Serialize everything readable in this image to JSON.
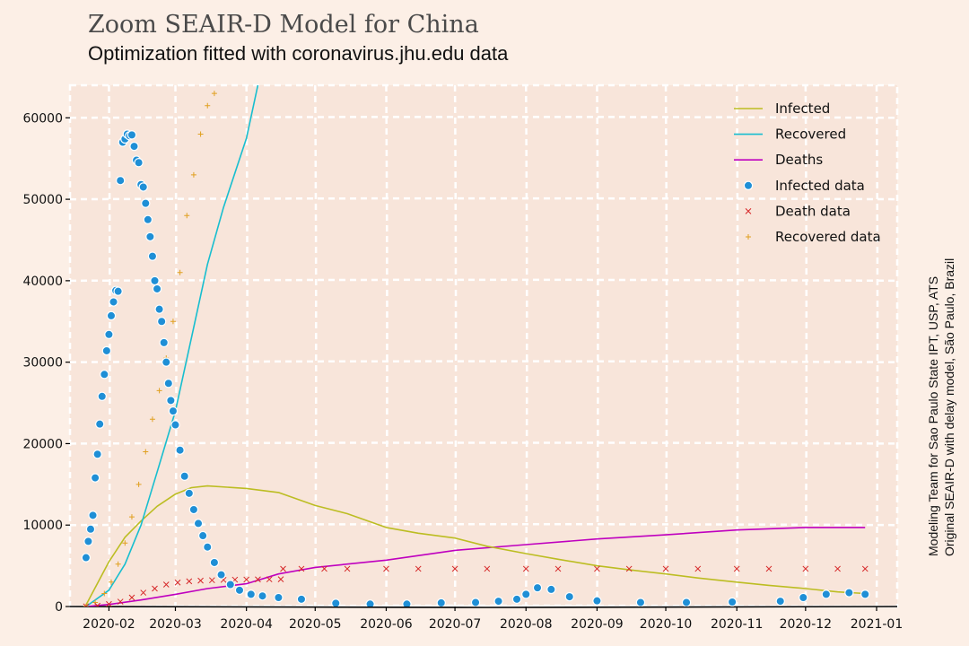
{
  "colors": {
    "figure_bg": "#fcefe6",
    "plot_bg": "#f8e5da",
    "grid": "#ffffff",
    "infected": "#bcbd22",
    "recovered": "#17becf",
    "deaths": "#bf00bf",
    "infected_data": "#1f8fd6",
    "death_data": "#d62728",
    "recovered_data": "#e0a020"
  },
  "chart_data": {
    "type": "line",
    "title": "Zoom SEAIR-D Model for China",
    "subtitle": "Optimization fitted with coronavirus.jhu.edu data",
    "credit_lines": [
      "Modeling Team for Sao Paulo State IPT, USP, ATS",
      "Original SEAIR-D with delay model, São Paulo, Brazil"
    ],
    "xlabel": "",
    "ylabel": "",
    "x_domain": [
      "2020-01-15",
      "2021-01-10"
    ],
    "ylim": [
      0,
      64000
    ],
    "grid": true,
    "legend_position": "top-right",
    "x_ticks": [
      "2020-02",
      "2020-03",
      "2020-04",
      "2020-05",
      "2020-06",
      "2020-07",
      "2020-08",
      "2020-09",
      "2020-10",
      "2020-11",
      "2020-12",
      "2021-01"
    ],
    "x_tick_dates": [
      "2020-02-01",
      "2020-03-01",
      "2020-04-01",
      "2020-05-01",
      "2020-06-01",
      "2020-07-01",
      "2020-08-01",
      "2020-09-01",
      "2020-10-01",
      "2020-11-01",
      "2020-12-01",
      "2021-01-01"
    ],
    "y_ticks": [
      0,
      10000,
      20000,
      30000,
      40000,
      50000,
      60000
    ],
    "y_tick_labels": [
      "0",
      "10000",
      "20000",
      "30000",
      "40000",
      "50000",
      "60000"
    ],
    "series": [
      {
        "name": "Infected",
        "kind": "line",
        "x": [
          "2020-01-22",
          "2020-02-01",
          "2020-02-08",
          "2020-02-15",
          "2020-02-22",
          "2020-03-01",
          "2020-03-08",
          "2020-03-15",
          "2020-04-01",
          "2020-04-15",
          "2020-05-01",
          "2020-05-15",
          "2020-06-01",
          "2020-06-15",
          "2020-07-01",
          "2020-07-15",
          "2020-08-01",
          "2020-08-15",
          "2020-09-01",
          "2020-09-15",
          "2020-10-01",
          "2020-10-15",
          "2020-11-01",
          "2020-11-15",
          "2020-12-01",
          "2020-12-15",
          "2020-12-27"
        ],
        "y": [
          200,
          5500,
          8500,
          10500,
          12300,
          13800,
          14600,
          14800,
          14500,
          14000,
          12400,
          11400,
          9700,
          9000,
          8400,
          7400,
          6500,
          5800,
          5000,
          4500,
          4000,
          3500,
          3000,
          2600,
          2200,
          1800,
          1600
        ]
      },
      {
        "name": "Recovered",
        "kind": "line",
        "x": [
          "2020-01-22",
          "2020-02-01",
          "2020-02-08",
          "2020-02-15",
          "2020-02-22",
          "2020-03-01",
          "2020-03-08",
          "2020-03-15",
          "2020-03-22",
          "2020-04-01",
          "2020-04-06"
        ],
        "y": [
          0,
          2000,
          5200,
          10000,
          16500,
          24000,
          33000,
          42000,
          49000,
          57500,
          64000
        ]
      },
      {
        "name": "Deaths",
        "kind": "line",
        "x": [
          "2020-01-22",
          "2020-02-01",
          "2020-02-15",
          "2020-03-01",
          "2020-03-15",
          "2020-04-01",
          "2020-04-15",
          "2020-05-01",
          "2020-06-01",
          "2020-07-01",
          "2020-08-01",
          "2020-09-01",
          "2020-10-01",
          "2020-11-01",
          "2020-12-01",
          "2020-12-27"
        ],
        "y": [
          0,
          250,
          800,
          1500,
          2200,
          2800,
          4000,
          4800,
          5700,
          6900,
          7600,
          8300,
          8800,
          9400,
          9700,
          9700
        ]
      },
      {
        "name": "Infected data",
        "kind": "scatter",
        "marker": "circle",
        "x": [
          "2020-01-22",
          "2020-01-23",
          "2020-01-24",
          "2020-01-25",
          "2020-01-26",
          "2020-01-27",
          "2020-01-28",
          "2020-01-29",
          "2020-01-30",
          "2020-01-31",
          "2020-02-01",
          "2020-02-02",
          "2020-02-03",
          "2020-02-04",
          "2020-02-05",
          "2020-02-06",
          "2020-02-07",
          "2020-02-08",
          "2020-02-09",
          "2020-02-10",
          "2020-02-11",
          "2020-02-12",
          "2020-02-13",
          "2020-02-14",
          "2020-02-15",
          "2020-02-16",
          "2020-02-17",
          "2020-02-18",
          "2020-02-19",
          "2020-02-20",
          "2020-02-21",
          "2020-02-22",
          "2020-02-23",
          "2020-02-24",
          "2020-02-25",
          "2020-02-26",
          "2020-02-27",
          "2020-02-28",
          "2020-02-29",
          "2020-03-01",
          "2020-03-03",
          "2020-03-05",
          "2020-03-07",
          "2020-03-09",
          "2020-03-11",
          "2020-03-13",
          "2020-03-15",
          "2020-03-18",
          "2020-03-21",
          "2020-03-25",
          "2020-03-29",
          "2020-04-03",
          "2020-04-08",
          "2020-04-15",
          "2020-04-25",
          "2020-05-10",
          "2020-05-25",
          "2020-06-10",
          "2020-06-25",
          "2020-07-10",
          "2020-07-20",
          "2020-07-28",
          "2020-08-01",
          "2020-08-06",
          "2020-08-12",
          "2020-08-20",
          "2020-09-01",
          "2020-09-20",
          "2020-10-10",
          "2020-10-30",
          "2020-11-20",
          "2020-11-30",
          "2020-12-10",
          "2020-12-20",
          "2020-12-27"
        ],
        "y": [
          6000,
          8000,
          9500,
          11200,
          15800,
          18700,
          22400,
          25800,
          28500,
          31400,
          33400,
          35700,
          37400,
          38800,
          38700,
          52300,
          57000,
          57400,
          58000,
          57800,
          57900,
          56500,
          54800,
          54500,
          51800,
          51500,
          49500,
          47500,
          45400,
          43000,
          40000,
          39000,
          36500,
          35000,
          32400,
          30000,
          27400,
          25300,
          24000,
          22300,
          19200,
          16000,
          13900,
          11900,
          10200,
          8700,
          7300,
          5400,
          3900,
          2700,
          2000,
          1500,
          1300,
          1100,
          900,
          400,
          300,
          300,
          450,
          500,
          650,
          900,
          1500,
          2300,
          2100,
          1200,
          700,
          500,
          500,
          550,
          650,
          1100,
          1500,
          1700,
          1500
        ]
      },
      {
        "name": "Death data",
        "kind": "scatter",
        "marker": "x",
        "x": [
          "2020-01-22",
          "2020-01-27",
          "2020-02-01",
          "2020-02-06",
          "2020-02-11",
          "2020-02-16",
          "2020-02-21",
          "2020-02-26",
          "2020-03-02",
          "2020-03-07",
          "2020-03-12",
          "2020-03-17",
          "2020-03-22",
          "2020-03-27",
          "2020-04-01",
          "2020-04-06",
          "2020-04-11",
          "2020-04-16",
          "2020-04-17",
          "2020-04-25",
          "2020-05-05",
          "2020-05-15",
          "2020-06-01",
          "2020-06-15",
          "2020-07-01",
          "2020-07-15",
          "2020-08-01",
          "2020-08-15",
          "2020-09-01",
          "2020-09-15",
          "2020-10-01",
          "2020-10-15",
          "2020-11-01",
          "2020-11-15",
          "2020-12-01",
          "2020-12-15",
          "2020-12-27"
        ],
        "y": [
          20,
          100,
          300,
          600,
          1100,
          1700,
          2200,
          2700,
          2950,
          3100,
          3180,
          3230,
          3270,
          3300,
          3310,
          3330,
          3340,
          3345,
          4630,
          4633,
          4634,
          4634,
          4634,
          4634,
          4634,
          4634,
          4634,
          4634,
          4634,
          4634,
          4634,
          4634,
          4634,
          4634,
          4634,
          4634,
          4634
        ]
      },
      {
        "name": "Recovered data",
        "kind": "scatter",
        "marker": "plus",
        "x": [
          "2020-01-22",
          "2020-01-26",
          "2020-01-30",
          "2020-02-02",
          "2020-02-05",
          "2020-02-08",
          "2020-02-11",
          "2020-02-14",
          "2020-02-17",
          "2020-02-20",
          "2020-02-23",
          "2020-02-26",
          "2020-02-29",
          "2020-03-03",
          "2020-03-06",
          "2020-03-09",
          "2020-03-12",
          "2020-03-15",
          "2020-03-18"
        ],
        "y": [
          30,
          500,
          1600,
          3000,
          5200,
          7800,
          11000,
          15000,
          19000,
          23000,
          26500,
          30500,
          35000,
          41000,
          48000,
          53000,
          58000,
          61500,
          63000
        ]
      }
    ]
  }
}
